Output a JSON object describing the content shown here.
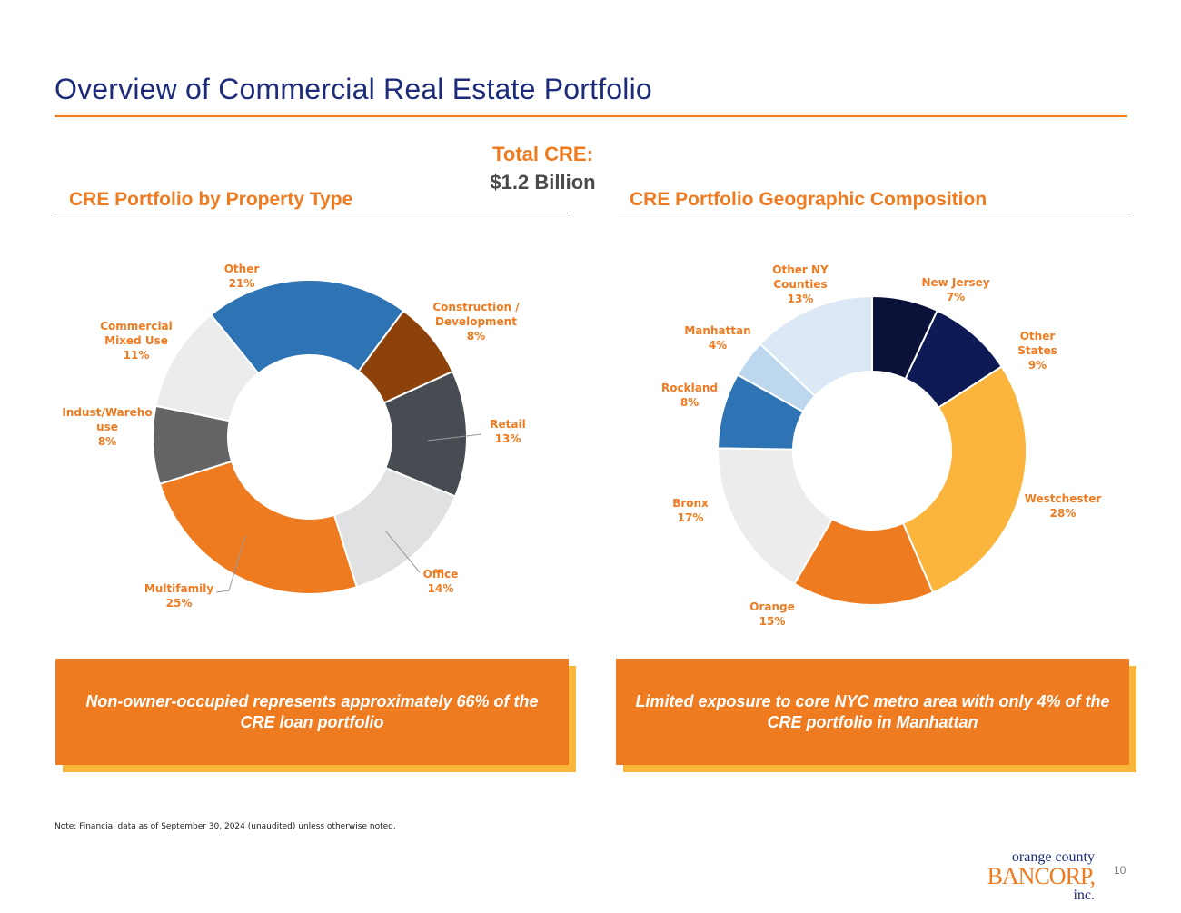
{
  "header": {
    "title": "Overview of Commercial Real Estate Portfolio",
    "total_label": "Total CRE:",
    "total_value": "$1.2 Billion"
  },
  "left_section": {
    "title": "CRE Portfolio by Property Type"
  },
  "right_section": {
    "title": "CRE Portfolio Geographic Composition"
  },
  "callouts": {
    "left": "Non-owner-occupied represents approximately 66% of the CRE loan portfolio",
    "right": "Limited exposure to core NYC metro area with only 4% of the CRE portfolio in Manhattan"
  },
  "footer": {
    "note": "Note: Financial data as of September 30, 2024 (unaudited) unless otherwise noted.",
    "page_number": "10",
    "logo_line1": "orange county",
    "logo_line2": "BANCORP,",
    "logo_line3": "inc."
  },
  "colors": {
    "accent_orange": "#ef7b21",
    "title_navy": "#1d2b7a",
    "shadow_yellow": "#f8b73a"
  },
  "chart_data": [
    {
      "type": "pie",
      "subtype": "donut",
      "title": "CRE Portfolio by Property Type",
      "unit": "%",
      "slices": [
        {
          "label": [
            "Other"
          ],
          "value": 21,
          "color": "#2e74b5"
        },
        {
          "label": [
            "Construction /",
            "Development"
          ],
          "value": 8,
          "color": "#8e420b"
        },
        {
          "label": [
            "Retail"
          ],
          "value": 13,
          "color": "#474b52"
        },
        {
          "label": [
            "Office"
          ],
          "value": 14,
          "color": "#dfe1e3"
        },
        {
          "label": [
            "Multifamily"
          ],
          "value": 25,
          "color": "#ef7b21"
        },
        {
          "label": [
            "Indust/Wareho",
            "use"
          ],
          "value": 8,
          "color": "#646464"
        },
        {
          "label": [
            "Commercial",
            "Mixed Use"
          ],
          "value": 11,
          "color": "#ececec"
        }
      ]
    },
    {
      "type": "pie",
      "subtype": "donut",
      "title": "CRE Portfolio Geographic Composition",
      "unit": "%",
      "slices": [
        {
          "label": [
            "New Jersey"
          ],
          "value": 7,
          "color": "#0b1239"
        },
        {
          "label": [
            "Other",
            "States"
          ],
          "value": 9,
          "color": "#0d1a54"
        },
        {
          "label": [
            "Westchester"
          ],
          "value": 28,
          "color": "#fbb43c"
        },
        {
          "label": [
            "Orange"
          ],
          "value": 15,
          "color": "#ef7b21"
        },
        {
          "label": [
            "Bronx"
          ],
          "value": 17,
          "color": "#ececec"
        },
        {
          "label": [
            "Rockland"
          ],
          "value": 8,
          "color": "#2e74b5"
        },
        {
          "label": [
            "Manhattan"
          ],
          "value": 4,
          "color": "#bdd7ee"
        },
        {
          "label": [
            "Other NY",
            "Counties"
          ],
          "value": 13,
          "color": "#dce8f5"
        }
      ]
    }
  ]
}
